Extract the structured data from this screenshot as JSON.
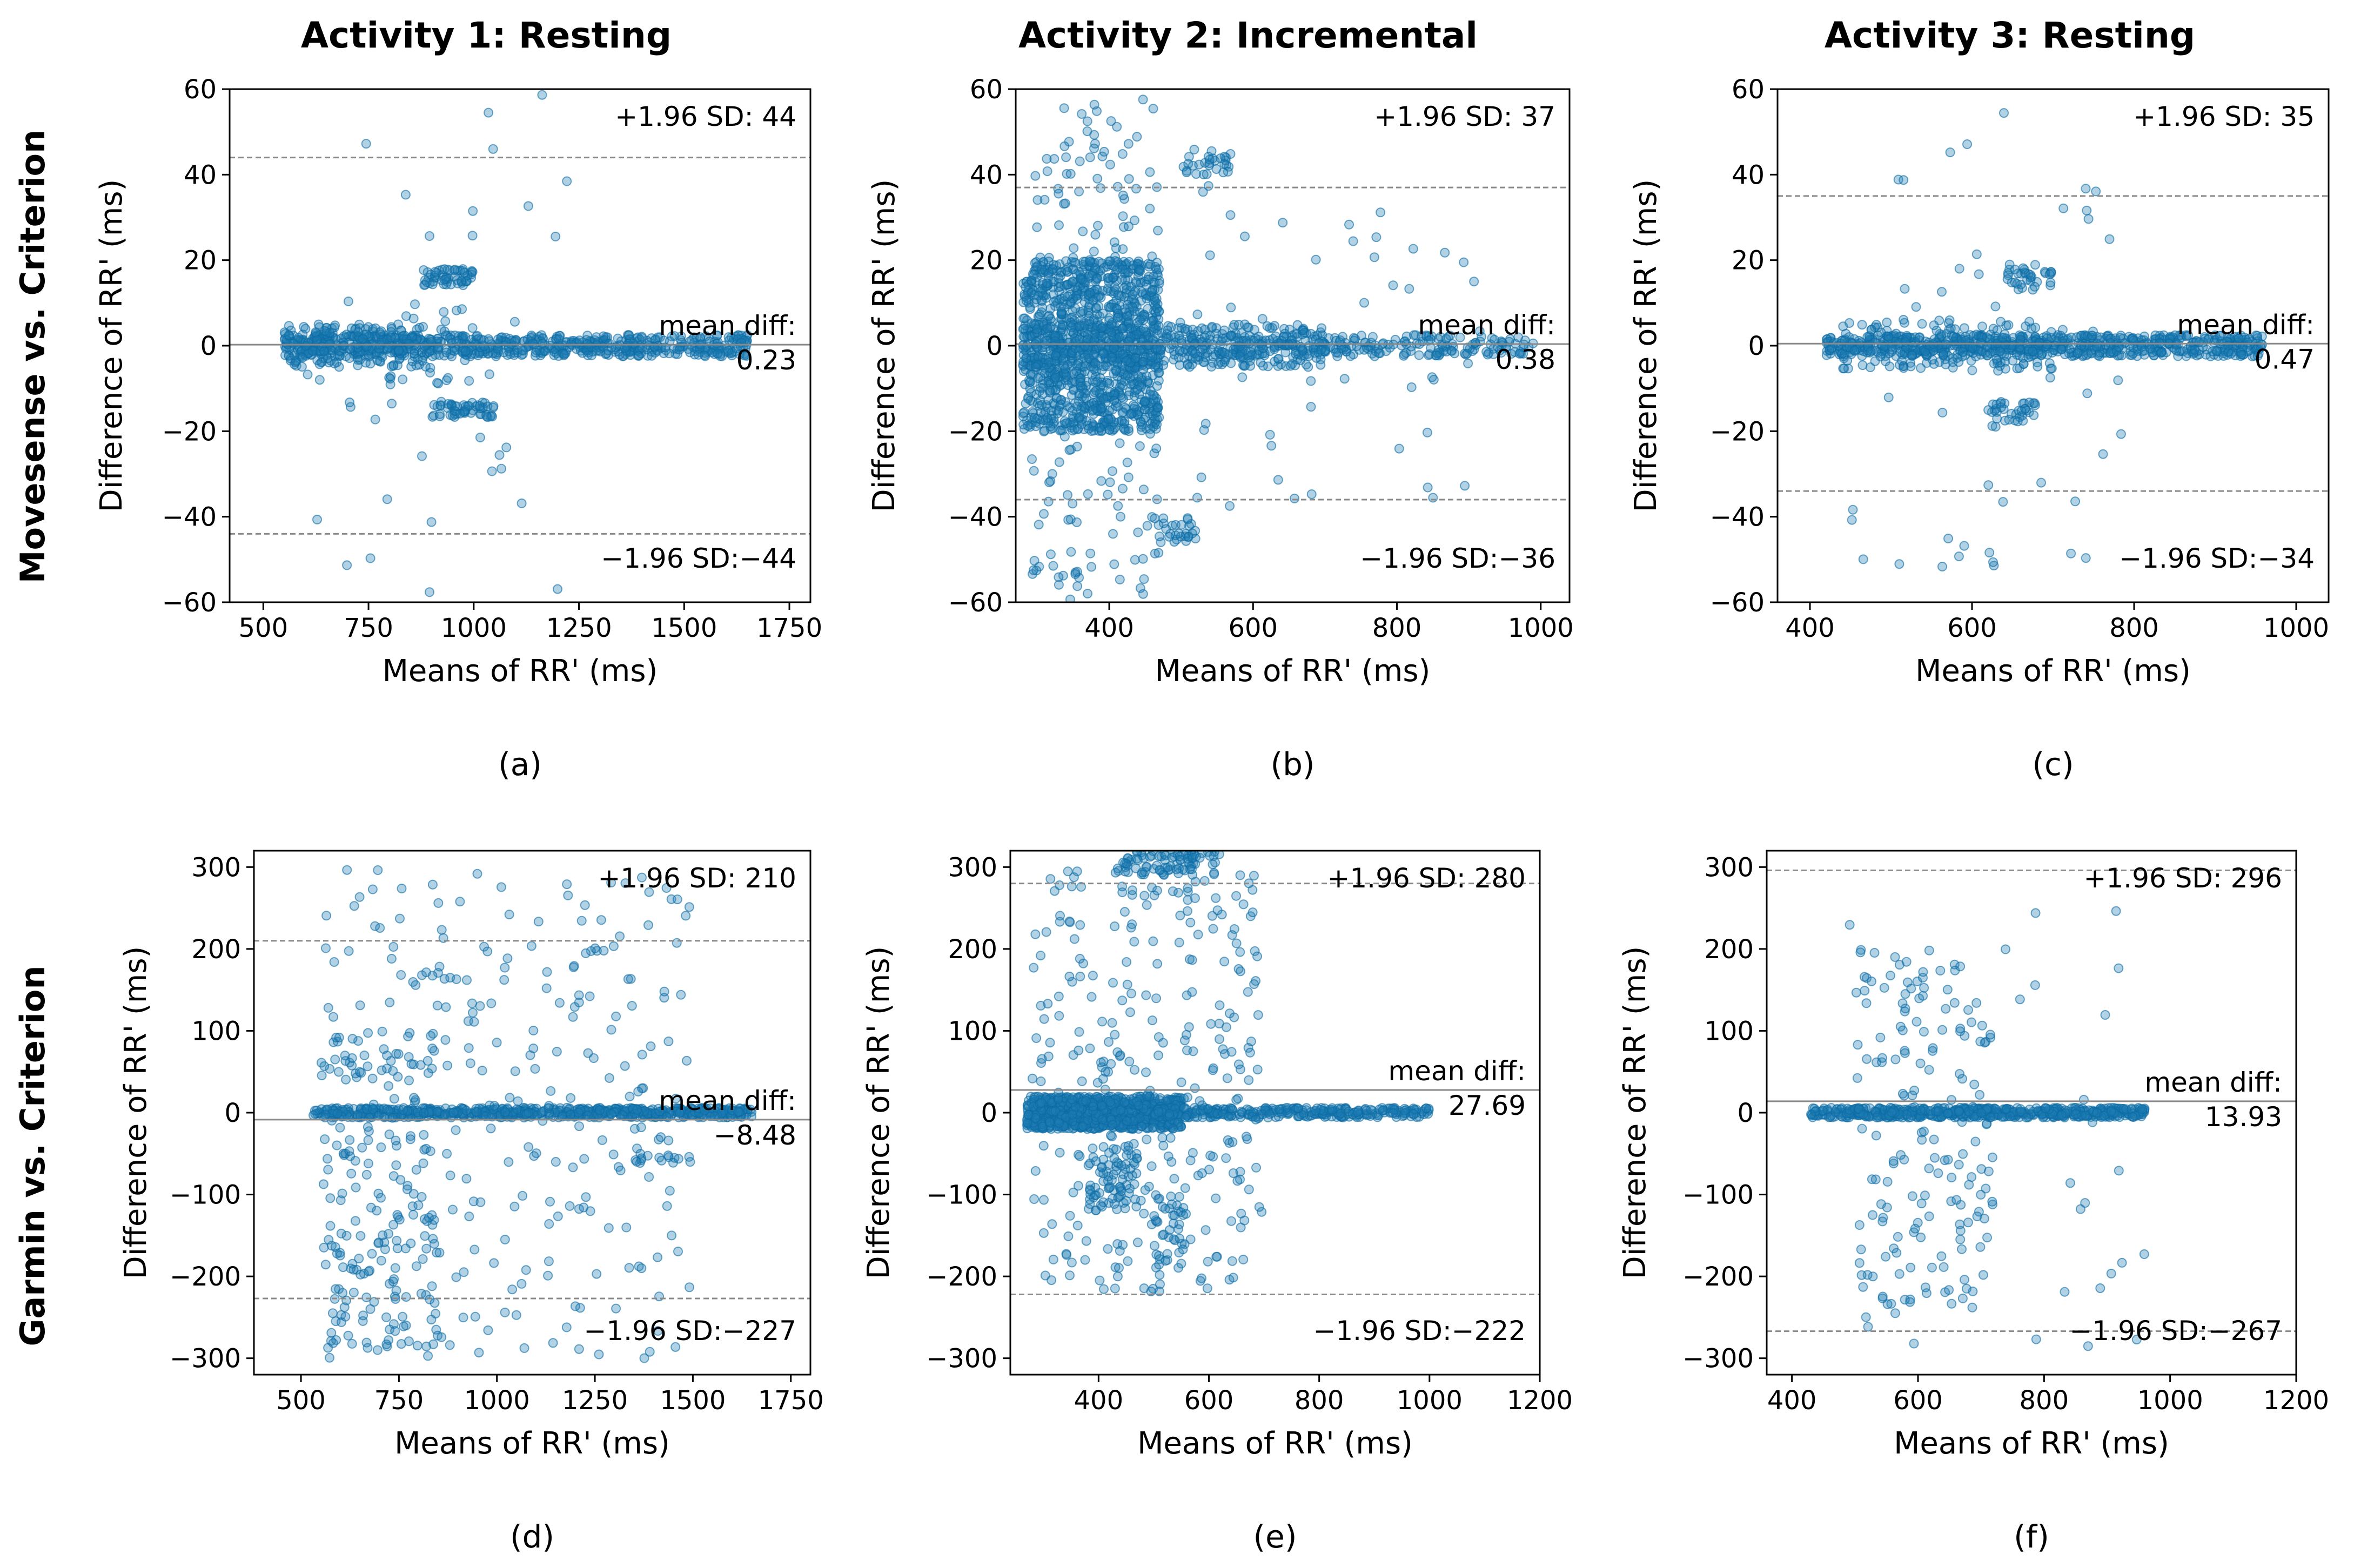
{
  "figure": {
    "column_titles": [
      "Activity 1: Resting",
      "Activity 2: Incremental",
      "Activity 3: Resting"
    ],
    "row_titles": [
      "Movesense vs. Criterion",
      "Garmin vs. Criterion"
    ],
    "colors": {
      "points": "#1f7fb4",
      "point_edge": "#0b6aa3",
      "mean_line": "#8a8a8a",
      "sd_line": "#8a8a8a",
      "axes": "#000000"
    }
  },
  "chart_data": [
    {
      "type": "scatter",
      "panel_label": "(a)",
      "row": 0,
      "col": 0,
      "xlabel": "Means of RR' (ms)",
      "ylabel": "Difference of RR' (ms)",
      "xlim": [
        420,
        1800
      ],
      "ylim": [
        -60,
        60
      ],
      "xticks": [
        500,
        750,
        1000,
        1250,
        1500,
        1750
      ],
      "yticks": [
        -60,
        -40,
        -20,
        0,
        20,
        40,
        60
      ],
      "mean_diff": 0.23,
      "upper_loa": 44,
      "lower_loa": -44,
      "mean_label": "mean diff:",
      "mean_value_text": "0.23",
      "upper_text": "+1.96 SD: 44",
      "lower_text": "−1.96 SD:−44",
      "clusters": [
        {
          "x": [
            550,
            1650
          ],
          "y": [
            -2.5,
            2.5
          ],
          "n": 700
        },
        {
          "x": [
            550,
            900
          ],
          "y": [
            -5,
            5
          ],
          "n": 160
        },
        {
          "x": [
            880,
            1000
          ],
          "y": [
            14,
            18
          ],
          "n": 55
        },
        {
          "x": [
            900,
            1050
          ],
          "y": [
            -17,
            -13
          ],
          "n": 55
        },
        {
          "x": [
            750,
            1000
          ],
          "y": [
            -10,
            10
          ],
          "n": 40
        },
        {
          "x": [
            600,
            1250
          ],
          "y": [
            -60,
            60
          ],
          "n": 40
        }
      ]
    },
    {
      "type": "scatter",
      "panel_label": "(b)",
      "row": 0,
      "col": 1,
      "xlabel": "Means of RR' (ms)",
      "ylabel": "Difference of RR' (ms)",
      "xlim": [
        270,
        1040
      ],
      "ylim": [
        -60,
        60
      ],
      "xticks": [
        400,
        600,
        800,
        1000
      ],
      "yticks": [
        -60,
        -40,
        -20,
        0,
        20,
        40,
        60
      ],
      "mean_diff": 0.38,
      "upper_loa": 37,
      "lower_loa": -36,
      "mean_label": "mean diff:",
      "mean_value_text": "0.38",
      "upper_text": "+1.96 SD: 37",
      "lower_text": "−1.96 SD:−36",
      "clusters": [
        {
          "x": [
            280,
            470
          ],
          "y": [
            -20,
            20
          ],
          "n": 1100
        },
        {
          "x": [
            280,
            700
          ],
          "y": [
            -5,
            5
          ],
          "n": 400
        },
        {
          "x": [
            500,
            1000
          ],
          "y": [
            -2.5,
            2.5
          ],
          "n": 250
        },
        {
          "x": [
            290,
            470
          ],
          "y": [
            -60,
            60
          ],
          "n": 220
        },
        {
          "x": [
            500,
            570
          ],
          "y": [
            40,
            46
          ],
          "n": 30
        },
        {
          "x": [
            450,
            520
          ],
          "y": [
            -46,
            -40
          ],
          "n": 30
        },
        {
          "x": [
            400,
            950
          ],
          "y": [
            -40,
            40
          ],
          "n": 60
        }
      ]
    },
    {
      "type": "scatter",
      "panel_label": "(c)",
      "row": 0,
      "col": 2,
      "xlabel": "Means of RR' (ms)",
      "ylabel": "Difference of RR' (ms)",
      "xlim": [
        360,
        1040
      ],
      "ylim": [
        -60,
        60
      ],
      "xticks": [
        400,
        600,
        800,
        1000
      ],
      "yticks": [
        -60,
        -40,
        -20,
        0,
        20,
        40,
        60
      ],
      "mean_diff": 0.47,
      "upper_loa": 35,
      "lower_loa": -34,
      "mean_label": "mean diff:",
      "mean_value_text": "0.47",
      "upper_text": "+1.96 SD: 35",
      "lower_text": "−1.96 SD:−34",
      "clusters": [
        {
          "x": [
            420,
            960
          ],
          "y": [
            -2.5,
            2.5
          ],
          "n": 700
        },
        {
          "x": [
            440,
            700
          ],
          "y": [
            -6,
            6
          ],
          "n": 160
        },
        {
          "x": [
            640,
            700
          ],
          "y": [
            13,
            19
          ],
          "n": 35
        },
        {
          "x": [
            620,
            680
          ],
          "y": [
            -19,
            -13
          ],
          "n": 35
        },
        {
          "x": [
            450,
            800
          ],
          "y": [
            -55,
            55
          ],
          "n": 50
        }
      ]
    },
    {
      "type": "scatter",
      "panel_label": "(d)",
      "row": 1,
      "col": 0,
      "xlabel": "Means of RR' (ms)",
      "ylabel": "Difference of RR' (ms)",
      "xlim": [
        380,
        1800
      ],
      "ylim": [
        -320,
        320
      ],
      "xticks": [
        500,
        750,
        1000,
        1250,
        1500,
        1750
      ],
      "yticks": [
        -300,
        -200,
        -100,
        0,
        100,
        200,
        300
      ],
      "mean_diff": -8.48,
      "upper_loa": 210,
      "lower_loa": -227,
      "mean_label": "mean diff:",
      "mean_value_text": "−8.48",
      "upper_text": "+1.96 SD: 210",
      "lower_text": "−1.96 SD:−227",
      "clusters": [
        {
          "x": [
            530,
            1650
          ],
          "y": [
            -6,
            6
          ],
          "n": 650
        },
        {
          "x": [
            550,
            850
          ],
          "y": [
            -300,
            100
          ],
          "n": 180
        },
        {
          "x": [
            550,
            1500
          ],
          "y": [
            -300,
            300
          ],
          "n": 260
        },
        {
          "x": [
            1350,
            1500
          ],
          "y": [
            -62,
            -52
          ],
          "n": 15
        }
      ]
    },
    {
      "type": "scatter",
      "panel_label": "(e)",
      "row": 1,
      "col": 1,
      "xlabel": "Means of RR' (ms)",
      "ylabel": "Difference of RR' (ms)",
      "xlim": [
        240,
        1200
      ],
      "ylim": [
        -320,
        320
      ],
      "xticks": [
        400,
        600,
        800,
        1000,
        1200
      ],
      "yticks": [
        -300,
        -200,
        -100,
        0,
        100,
        200,
        300
      ],
      "mean_diff": 27.69,
      "upper_loa": 280,
      "lower_loa": -222,
      "mean_label": "mean diff:",
      "mean_value_text": "27.69",
      "upper_text": "+1.96 SD: 280",
      "lower_text": "−1.96 SD:−222",
      "clusters": [
        {
          "x": [
            270,
            550
          ],
          "y": [
            -20,
            20
          ],
          "n": 900
        },
        {
          "x": [
            500,
            1000
          ],
          "y": [
            -6,
            6
          ],
          "n": 300
        },
        {
          "x": [
            280,
            700
          ],
          "y": [
            -220,
            300
          ],
          "n": 300
        },
        {
          "x": [
            430,
            620
          ],
          "y": [
            290,
            320
          ],
          "n": 90
        },
        {
          "x": [
            380,
            470
          ],
          "y": [
            -120,
            -40
          ],
          "n": 80
        },
        {
          "x": [
            500,
            560
          ],
          "y": [
            -190,
            -100
          ],
          "n": 40
        }
      ]
    },
    {
      "type": "scatter",
      "panel_label": "(f)",
      "row": 1,
      "col": 2,
      "xlabel": "Means of RR' (ms)",
      "ylabel": "Difference of RR' (ms)",
      "xlim": [
        360,
        1200
      ],
      "ylim": [
        -320,
        320
      ],
      "xticks": [
        400,
        600,
        800,
        1000,
        1200
      ],
      "yticks": [
        -300,
        -200,
        -100,
        0,
        100,
        200,
        300
      ],
      "mean_diff": 13.93,
      "upper_loa": 296,
      "lower_loa": -267,
      "mean_label": "mean diff:",
      "mean_value_text": "13.93",
      "upper_text": "+1.96 SD: 296",
      "lower_text": "−1.96 SD:−267",
      "clusters": [
        {
          "x": [
            430,
            960
          ],
          "y": [
            -6,
            6
          ],
          "n": 600
        },
        {
          "x": [
            500,
            720
          ],
          "y": [
            -250,
            200
          ],
          "n": 160
        },
        {
          "x": [
            470,
            960
          ],
          "y": [
            -300,
            250
          ],
          "n": 40
        }
      ]
    }
  ]
}
